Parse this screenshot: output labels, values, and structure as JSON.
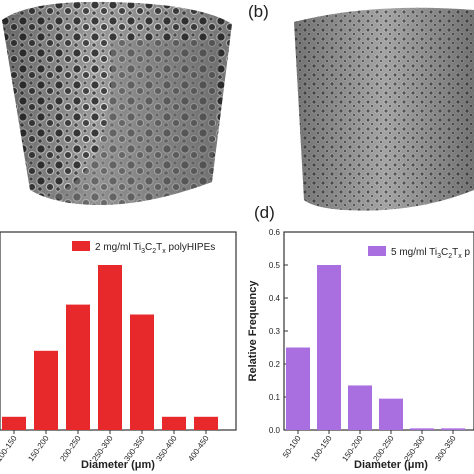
{
  "panels": {
    "b_label": "(b)",
    "d_label": "(d)"
  },
  "colors": {
    "red": "#e8292b",
    "purple": "#a96fe0",
    "axis": "#333333"
  },
  "chart_data": [
    {
      "type": "bar",
      "panel": "c",
      "categories": [
        "100-150",
        "150-200",
        "200-250",
        "250-300",
        "300-350",
        "350-400",
        "400-450"
      ],
      "values": [
        0.02,
        0.12,
        0.19,
        0.25,
        0.175,
        0.02,
        0.02
      ],
      "series": [
        {
          "name": "2 mg/ml Ti3C2Tx polyHIPEs",
          "values": [
            0.02,
            0.12,
            0.19,
            0.25,
            0.175,
            0.02,
            0.02
          ]
        }
      ],
      "legend_prefix": "2 mg/ml Ti",
      "legend_sub1": "3",
      "legend_mid": "C",
      "legend_sub2": "2",
      "legend_mid2": "T",
      "legend_sub3": "x",
      "legend_suffix": " polyHIPEs",
      "xlabel": "Diameter (μm)",
      "ylabel": "",
      "ylim": [
        0,
        0.3
      ],
      "grid": false,
      "legend_position": "top-right"
    },
    {
      "type": "bar",
      "panel": "d",
      "categories": [
        "50-100",
        "100-150",
        "150-200",
        "200-250",
        "250-300",
        "300-350"
      ],
      "values": [
        0.25,
        0.5,
        0.135,
        0.095,
        0.005,
        0.005
      ],
      "series": [
        {
          "name": "5 mg/ml Ti3C2Tx p",
          "values": [
            0.25,
            0.5,
            0.135,
            0.095,
            0.005,
            0.005
          ]
        }
      ],
      "legend_prefix": "5 mg/ml Ti",
      "legend_sub1": "3",
      "legend_mid": "C",
      "legend_sub2": "2",
      "legend_mid2": "T",
      "legend_sub3": "x",
      "legend_suffix": " p",
      "yticks": [
        "0.0",
        "0.1",
        "0.2",
        "0.3",
        "0.4",
        "0.5",
        "0.6"
      ],
      "xlabel": "Diameter (μm)",
      "ylabel": "Relative Frequency",
      "ylim": [
        0,
        0.6
      ],
      "grid": false,
      "legend_position": "top-left"
    }
  ]
}
